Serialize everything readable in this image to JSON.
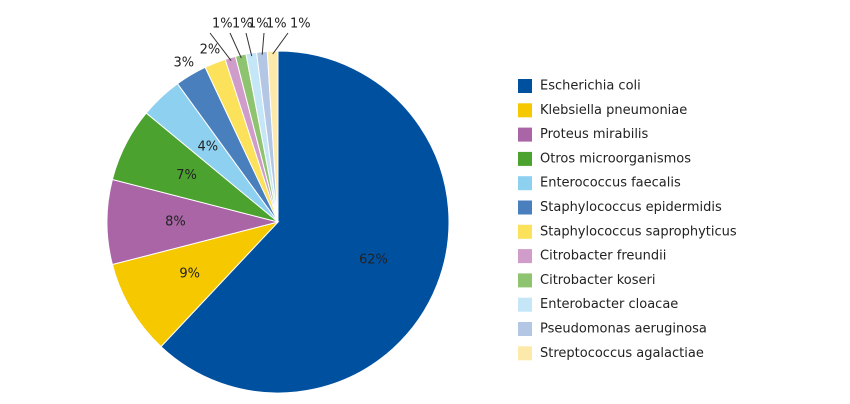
{
  "chart_data": {
    "type": "pie",
    "categories": [
      "Escherichia coli",
      "Klebsiella pneumoniae",
      "Proteus mirabilis",
      "Otros microorganismos",
      "Enterococcus faecalis",
      "Staphylococcus epidermidis",
      "Staphylococcus saprophyticus",
      "Citrobacter freundii",
      "Citrobacter koseri",
      "Enterobacter cloacae",
      "Pseudomonas aeruginosa",
      "Streptococcus agalactiae"
    ],
    "values": [
      62,
      9,
      8,
      7,
      4,
      3,
      2,
      1,
      1,
      1,
      1,
      1
    ],
    "value_labels": [
      "62%",
      "9%",
      "8%",
      "7%",
      "4%",
      "3%",
      "2%",
      "1%",
      "1%",
      "1%",
      "1%",
      "1%"
    ],
    "colors": [
      "#0050a0",
      "#f5c800",
      "#a965a5",
      "#4ca22e",
      "#8dd0f0",
      "#4a7fbd",
      "#fce15a",
      "#d09cc9",
      "#8ec46f",
      "#c5e6f7",
      "#b3c7e4",
      "#fde9a9"
    ],
    "legend": "right"
  }
}
